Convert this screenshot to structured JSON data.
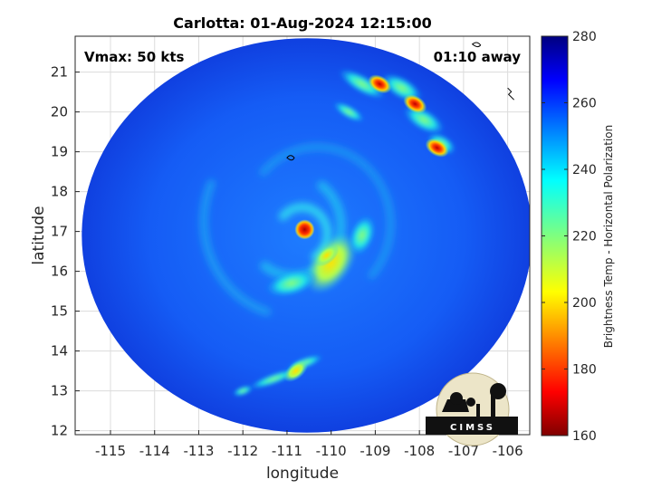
{
  "chart_data": {
    "type": "heatmap",
    "title": "Carlotta: 01-Aug-2024 12:15:00",
    "xlabel": "longitude",
    "ylabel": "latitude",
    "xlim": [
      -115.8,
      -105.5
    ],
    "ylim": [
      11.9,
      21.9
    ],
    "x_ticks": [
      -115,
      -114,
      -113,
      -112,
      -111,
      -110,
      -109,
      -108,
      -107,
      -106
    ],
    "y_ticks": [
      12,
      13,
      14,
      15,
      16,
      17,
      18,
      19,
      20,
      21
    ],
    "grid": true,
    "annotations": {
      "top_left": "Vmax: 50 kts",
      "top_right": "01:10 away"
    },
    "colorbar": {
      "label": "Brightness Temp - Horizontal Polarization",
      "min": 160,
      "max": 280,
      "ticks": [
        160,
        180,
        200,
        220,
        240,
        260,
        280
      ],
      "colormap": "jet"
    },
    "storm_center": {
      "lon": -110.6,
      "lat": 17.05,
      "value": 175
    },
    "swath": {
      "center_lon": -110.55,
      "center_lat": 16.9,
      "radius_deg_lon": 5.1,
      "radius_deg_lat": 4.95
    },
    "features": [
      {
        "name": "eye",
        "lon": -110.6,
        "lat": 17.05,
        "value": 175
      },
      {
        "name": "inner-eyewall",
        "lon": -110.1,
        "lat": 16.4,
        "value": 215
      },
      {
        "name": "outer-band-ne",
        "lon": -108.1,
        "lat": 20.2,
        "value": 178
      },
      {
        "name": "outer-band-ne-2",
        "lon": -108.9,
        "lat": 20.7,
        "value": 190
      },
      {
        "name": "outer-band-e",
        "lon": -107.6,
        "lat": 19.1,
        "value": 200
      },
      {
        "name": "south-band",
        "lon": -110.8,
        "lat": 13.5,
        "value": 225
      }
    ]
  },
  "logo": {
    "text": "CIMSS"
  }
}
